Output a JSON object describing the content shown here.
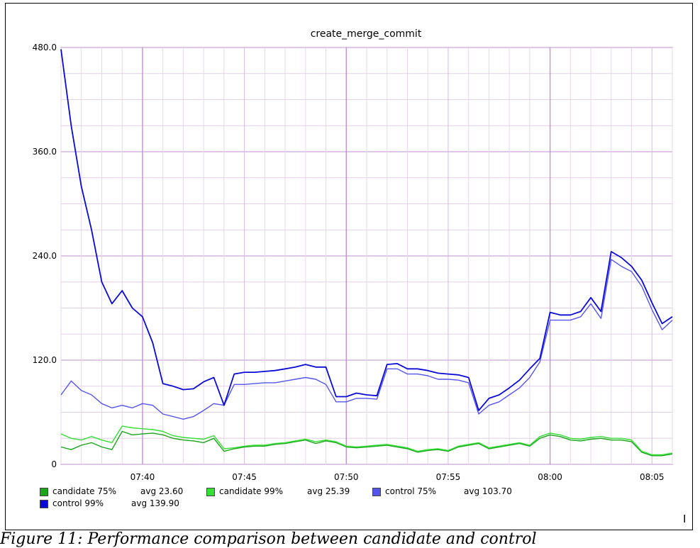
{
  "caption": "Figure 11: Performance comparison between candidate and control",
  "chart_data": {
    "type": "line",
    "title": "create_merge_commit",
    "xlabel": "",
    "ylabel": "",
    "ylim": [
      0,
      480
    ],
    "yticks": [
      "480.0",
      "360.0",
      "240.0",
      "120.0",
      "0"
    ],
    "xticks": [
      "07:40",
      "07:45",
      "07:50",
      "07:55",
      "08:00",
      "08:05"
    ],
    "x_start": "07:36",
    "x_end": "08:06",
    "grid": true,
    "legend_position": "bottom",
    "x": [
      "07:36:00",
      "07:36:30",
      "07:37:00",
      "07:37:30",
      "07:38:00",
      "07:38:30",
      "07:39:00",
      "07:39:30",
      "07:40:00",
      "07:40:30",
      "07:41:00",
      "07:41:30",
      "07:42:00",
      "07:42:30",
      "07:43:00",
      "07:43:30",
      "07:44:00",
      "07:44:30",
      "07:45:00",
      "07:45:30",
      "07:46:00",
      "07:46:30",
      "07:47:00",
      "07:47:30",
      "07:48:00",
      "07:48:30",
      "07:49:00",
      "07:49:30",
      "07:50:00",
      "07:50:30",
      "07:51:00",
      "07:51:30",
      "07:52:00",
      "07:52:30",
      "07:53:00",
      "07:53:30",
      "07:54:00",
      "07:54:30",
      "07:55:00",
      "07:55:30",
      "07:56:00",
      "07:56:30",
      "07:57:00",
      "07:57:30",
      "07:58:00",
      "07:58:30",
      "07:59:00",
      "07:59:30",
      "08:00:00",
      "08:00:30",
      "08:01:00",
      "08:01:30",
      "08:02:00",
      "08:02:30",
      "08:03:00",
      "08:03:30",
      "08:04:00",
      "08:04:30",
      "08:05:00",
      "08:05:30",
      "08:06:00"
    ],
    "series": [
      {
        "name": "candidate 75%",
        "avg_label": "avg  23.60",
        "color": "#1aa51a",
        "values": [
          20,
          17,
          22,
          25,
          20,
          17,
          38,
          34,
          35,
          36,
          34,
          30,
          28,
          27,
          25,
          30,
          15,
          18,
          20,
          21,
          21,
          23,
          24,
          26,
          28,
          24,
          27,
          25,
          20,
          19,
          20,
          21,
          22,
          20,
          18,
          14,
          16,
          17,
          15,
          20,
          22,
          24,
          18,
          20,
          22,
          24,
          21,
          30,
          34,
          32,
          28,
          27,
          29,
          30,
          28,
          28,
          26,
          14,
          10,
          10,
          12
        ]
      },
      {
        "name": "candidate 99%",
        "avg_label": "avg  25.39",
        "color": "#33e033",
        "values": [
          35,
          30,
          28,
          32,
          28,
          25,
          44,
          42,
          41,
          40,
          38,
          33,
          31,
          30,
          29,
          33,
          18,
          19,
          21,
          22,
          22,
          24,
          25,
          27,
          29,
          26,
          28,
          26,
          21,
          20,
          21,
          22,
          23,
          21,
          19,
          15,
          17,
          18,
          16,
          21,
          23,
          25,
          19,
          21,
          23,
          25,
          22,
          32,
          36,
          34,
          30,
          29,
          31,
          32,
          30,
          30,
          28,
          15,
          11,
          11,
          13
        ]
      },
      {
        "name": "control 75%",
        "avg_label": "avg  103.70",
        "color": "#5555ee",
        "values": [
          80,
          96,
          85,
          80,
          70,
          65,
          68,
          65,
          70,
          68,
          58,
          55,
          52,
          55,
          62,
          70,
          68,
          92,
          92,
          93,
          94,
          94,
          96,
          98,
          100,
          98,
          92,
          72,
          72,
          76,
          76,
          75,
          110,
          110,
          104,
          104,
          102,
          98,
          98,
          97,
          94,
          58,
          68,
          72,
          80,
          88,
          100,
          118,
          166,
          166,
          166,
          170,
          185,
          168,
          236,
          228,
          222,
          205,
          178,
          155,
          166
        ]
      },
      {
        "name": "control 99%",
        "avg_label": "avg  139.90",
        "color": "#0a0ad8",
        "values": [
          478,
          390,
          320,
          270,
          210,
          185,
          200,
          180,
          170,
          140,
          93,
          90,
          86,
          87,
          95,
          100,
          68,
          104,
          106,
          106,
          107,
          108,
          110,
          112,
          115,
          112,
          112,
          78,
          78,
          82,
          80,
          79,
          115,
          116,
          110,
          110,
          108,
          105,
          104,
          103,
          100,
          62,
          76,
          80,
          88,
          97,
          110,
          122,
          175,
          172,
          172,
          176,
          192,
          176,
          245,
          238,
          228,
          212,
          186,
          162,
          170
        ]
      }
    ]
  }
}
